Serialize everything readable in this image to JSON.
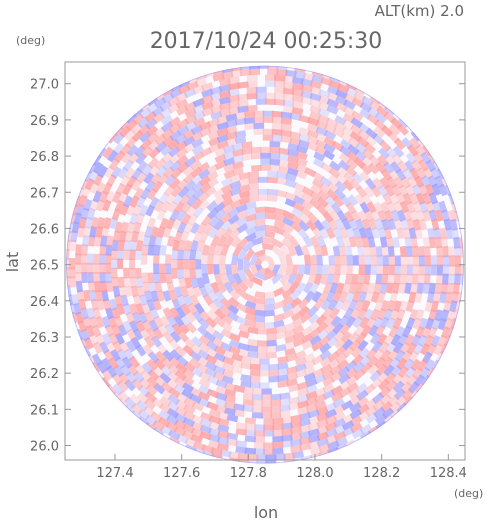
{
  "header": {
    "altitude_label": "ALT(km) 2.0",
    "timestamp": "2017/10/24 00:25:30",
    "y_unit": "(deg)",
    "x_unit": "(deg)"
  },
  "colors": {
    "positive": "#ff9a9a",
    "negative": "#9a9aff",
    "frame": "#999999",
    "text": "#666666"
  },
  "chart_data": {
    "type": "heatmap",
    "description_kind": "polar radar-style scan field, red/blue diverging values",
    "xlabel": "lon",
    "ylabel": "lat",
    "xlim": [
      127.25,
      128.45
    ],
    "ylim": [
      25.96,
      27.06
    ],
    "x_ticks": [
      "127.4",
      "127.6",
      "127.8",
      "128.0",
      "128.2",
      "128.4"
    ],
    "x_tick_values": [
      127.4,
      127.6,
      127.8,
      128.0,
      128.2,
      128.4
    ],
    "y_ticks": [
      "27.0",
      "26.9",
      "26.8",
      "26.7",
      "26.6",
      "26.5",
      "26.4",
      "26.3",
      "26.2",
      "26.1",
      "26.0"
    ],
    "y_tick_values": [
      27.0,
      26.9,
      26.8,
      26.7,
      26.6,
      26.5,
      26.4,
      26.3,
      26.2,
      26.1,
      26.0
    ],
    "center_lon": 127.85,
    "center_lat": 26.5,
    "radius_deg": 0.55,
    "colormap": [
      "negative-blue",
      "white",
      "positive-red"
    ],
    "grid": false
  }
}
